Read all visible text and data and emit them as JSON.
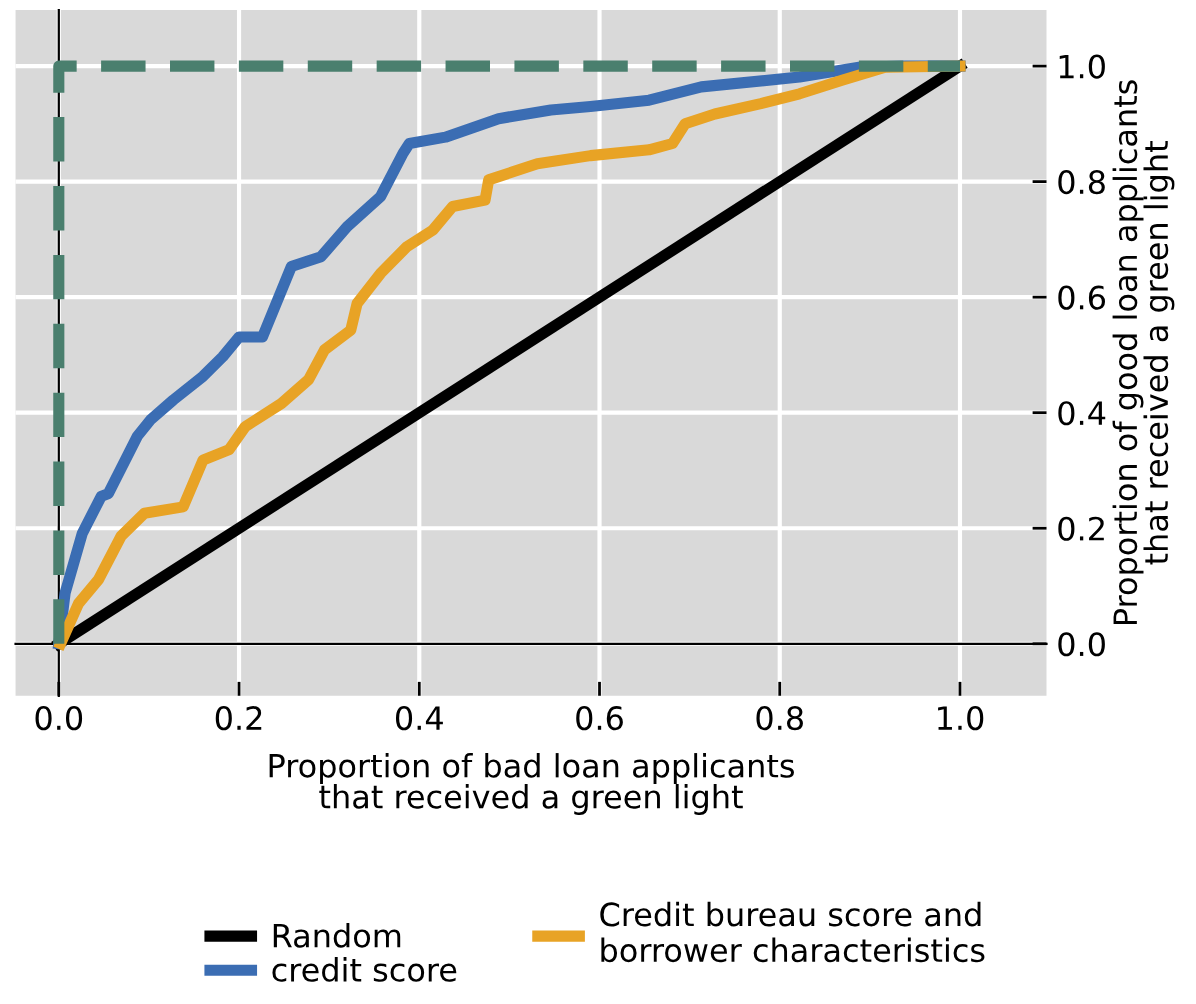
{
  "chart_data": {
    "type": "line",
    "xlabel": "Proportion of bad loan applicants\nthat received a green light",
    "ylabel": "Proportion of good loan applicants\nthat received a green light",
    "xlim": [
      -0.048,
      1.096
    ],
    "ylim": [
      -0.09,
      1.097
    ],
    "xticks": [
      {
        "value": 0,
        "label": "0.0"
      },
      0.2,
      0.4,
      0.6,
      0.8,
      {
        "value": 1,
        "label": "1.0"
      }
    ],
    "yticks": [
      {
        "value": 0,
        "label": "0.0"
      },
      0.2,
      0.4,
      0.6,
      0.8,
      {
        "value": 1,
        "label": "1.0"
      }
    ],
    "grid": true,
    "legend": "bottom",
    "series": [
      {
        "name": "Random",
        "color": "#000000",
        "x": [
          0,
          1
        ],
        "values": [
          0,
          1
        ]
      },
      {
        "name": "credit score",
        "color": "#3b6db3",
        "x": [
          0,
          0.007,
          0.026,
          0.047,
          0.055,
          0.087,
          0.102,
          0.127,
          0.16,
          0.182,
          0.2,
          0.226,
          0.258,
          0.291,
          0.32,
          0.357,
          0.382,
          0.389,
          0.429,
          0.488,
          0.546,
          0.59,
          0.655,
          0.713,
          0.822,
          0.888,
          0.939,
          1
        ],
        "values": [
          0,
          0.088,
          0.191,
          0.255,
          0.26,
          0.359,
          0.388,
          0.422,
          0.463,
          0.497,
          0.531,
          0.531,
          0.653,
          0.67,
          0.722,
          0.774,
          0.849,
          0.866,
          0.877,
          0.909,
          0.924,
          0.93,
          0.941,
          0.964,
          0.981,
          0.998,
          1.0,
          1
        ]
      },
      {
        "name": "Credit bureau score and\nborrower characteristics",
        "color": "#e8a325",
        "x": [
          0.002,
          0.022,
          0.044,
          0.069,
          0.095,
          0.138,
          0.16,
          0.189,
          0.207,
          0.247,
          0.277,
          0.295,
          0.324,
          0.331,
          0.357,
          0.386,
          0.415,
          0.437,
          0.473,
          0.477,
          0.531,
          0.59,
          0.655,
          0.681,
          0.695,
          0.728,
          0.779,
          0.822,
          0.87,
          0.917,
          1
        ],
        "values": [
          0,
          0.07,
          0.111,
          0.186,
          0.226,
          0.237,
          0.318,
          0.336,
          0.376,
          0.416,
          0.457,
          0.509,
          0.543,
          0.589,
          0.641,
          0.687,
          0.716,
          0.757,
          0.768,
          0.803,
          0.831,
          0.845,
          0.855,
          0.866,
          0.9,
          0.917,
          0.935,
          0.952,
          0.976,
          0.998,
          1
        ]
      },
      {
        "color": "#4a7f6e",
        "line_style": "dashed",
        "x": [
          0,
          0,
          1
        ],
        "values": [
          0,
          1,
          1
        ]
      }
    ]
  }
}
